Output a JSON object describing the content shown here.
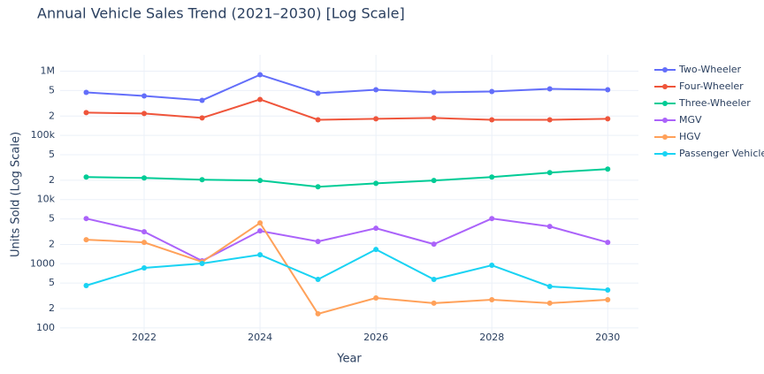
{
  "chart_data": {
    "type": "line",
    "title": "Annual Vehicle Sales Trend (2021–2030) [Log Scale]",
    "x_label": "Year",
    "y_label": "Units Sold (Log Scale)",
    "log_y": true,
    "grid": true,
    "legend_position": "top-right",
    "x": [
      2021,
      2022,
      2023,
      2024,
      2025,
      2026,
      2027,
      2028,
      2029,
      2030
    ],
    "xlim": [
      2020.55,
      2030.53
    ],
    "xticks": [
      2022,
      2024,
      2026,
      2028,
      2030
    ],
    "ylim": [
      60,
      1800000
    ],
    "yticks": [
      100,
      {
        "value": 200,
        "label": "2"
      },
      {
        "value": 500,
        "label": "5"
      },
      1000,
      {
        "value": 2000,
        "label": "2"
      },
      {
        "value": 5000,
        "label": "5"
      },
      {
        "value": 10000,
        "label": "10k"
      },
      {
        "value": 20000,
        "label": "2"
      },
      {
        "value": 50000,
        "label": "5"
      },
      {
        "value": 100000,
        "label": "100k"
      },
      {
        "value": 200000,
        "label": "2"
      },
      {
        "value": 500000,
        "label": "5"
      },
      {
        "value": 1000000,
        "label": "1M"
      }
    ],
    "series": [
      {
        "name": "Two-Wheeler",
        "color": "#636efa",
        "values": [
          468000,
          412000,
          352000,
          881000,
          453000,
          514000,
          468000,
          483000,
          531000,
          514000
        ]
      },
      {
        "name": "Four-Wheeler",
        "color": "#ef553b",
        "values": [
          226000,
          219000,
          187000,
          363000,
          175000,
          181000,
          187000,
          175000,
          175000,
          181000
        ]
      },
      {
        "name": "Three-Wheeler",
        "color": "#00cc96",
        "values": [
          22400,
          21700,
          20400,
          19800,
          15800,
          17900,
          19800,
          22400,
          26300,
          29800
        ]
      },
      {
        "name": "MGV",
        "color": "#ab63fa",
        "values": [
          5060,
          3150,
          1110,
          3250,
          2220,
          3570,
          2020,
          5060,
          3810,
          2150
        ]
      },
      {
        "name": "HGV",
        "color": "#ffa15a",
        "values": [
          2370,
          2150,
          1070,
          4320,
          166,
          293,
          243,
          275,
          243,
          275
        ]
      },
      {
        "name": "Passenger Vehicle",
        "color": "#19d3f3",
        "values": [
          457,
          861,
          1010,
          1380,
          570,
          1670,
          570,
          946,
          443,
          390
        ]
      }
    ]
  }
}
